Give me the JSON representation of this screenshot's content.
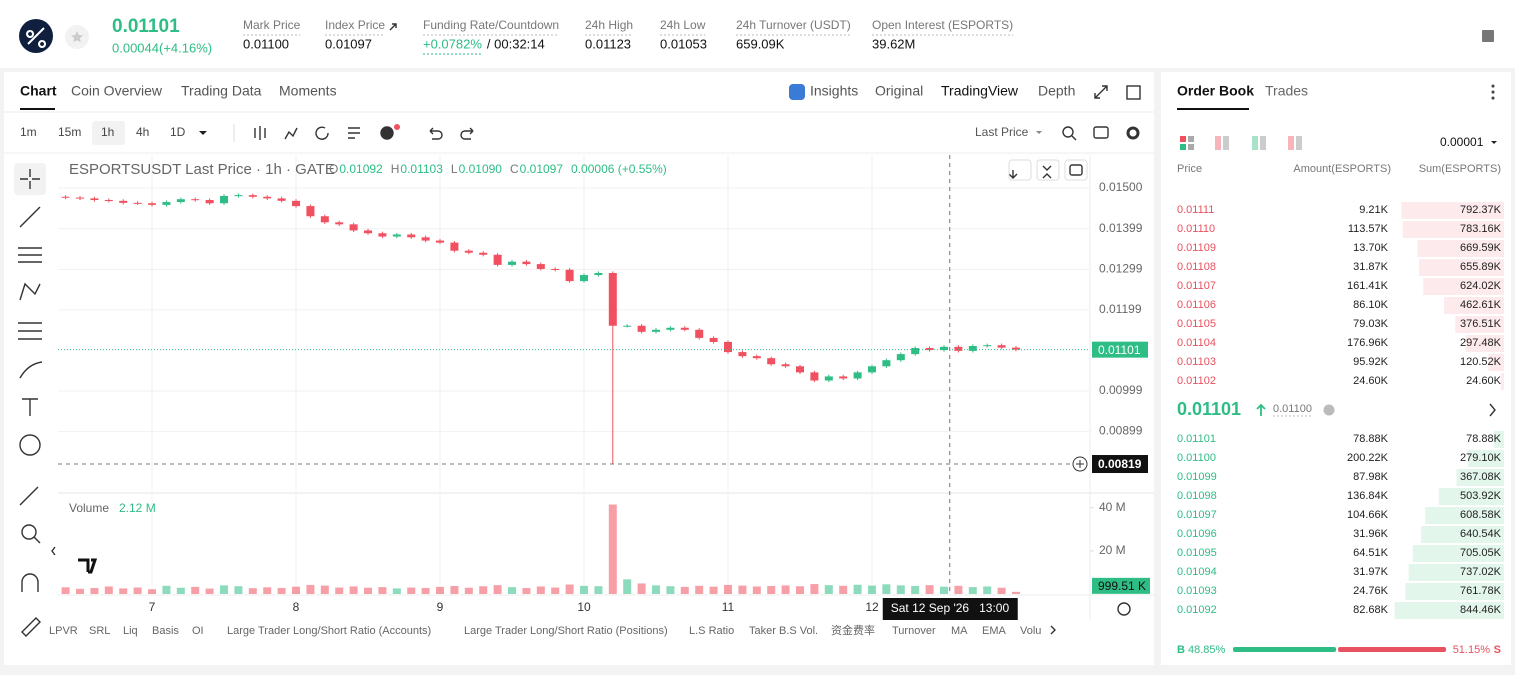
{
  "header": {
    "price": "0.01101",
    "change": "0.00044(+4.16%)",
    "stats": [
      {
        "label": "Mark Price",
        "value": "0.01100"
      },
      {
        "label": "Index Price",
        "value": "0.01097"
      },
      {
        "label": "Funding Rate/Countdown",
        "value": "+0.0782%",
        "countdown": "/ 00:32:14"
      },
      {
        "label": "24h High",
        "value": "0.01123"
      },
      {
        "label": "24h Low",
        "value": "0.01053"
      },
      {
        "label": "24h Turnover (USDT)",
        "value": "659.09K"
      },
      {
        "label": "Open Interest (ESPORTS)",
        "value": "39.62M"
      }
    ]
  },
  "chart_tabs": [
    "Chart",
    "Coin Overview",
    "Trading Data",
    "Moments"
  ],
  "view_tabs": [
    "Insights",
    "Original",
    "TradingView",
    "Depth"
  ],
  "intervals": [
    "1m",
    "15m",
    "1h",
    "4h",
    "1D"
  ],
  "price_source": "Last Price",
  "chart_data": {
    "type": "candlestick",
    "title": "ESPORTSUSDT Last Price · 1h · GATE",
    "legend": [
      {
        "key": "O",
        "value": "0.01092"
      },
      {
        "key": "H",
        "value": "0.01103"
      },
      {
        "key": "L",
        "value": "0.01090"
      },
      {
        "key": "C",
        "value": "0.01097"
      }
    ],
    "legend_change": "0.00006 (+0.55%)",
    "x": [
      6.4,
      6.5,
      6.6,
      6.7,
      6.8,
      6.9,
      7.0,
      7.1,
      7.2,
      7.3,
      7.4,
      7.5,
      7.6,
      7.7,
      7.8,
      7.9,
      8.0,
      8.1,
      8.2,
      8.3,
      8.4,
      8.5,
      8.6,
      8.7,
      8.8,
      8.9,
      9.0,
      9.1,
      9.2,
      9.3,
      9.4,
      9.5,
      9.6,
      9.7,
      9.8,
      9.9,
      10.0,
      10.1,
      10.2,
      10.3,
      10.4,
      10.5,
      10.6,
      10.7,
      10.8,
      10.9,
      11.0,
      11.1,
      11.2,
      11.3,
      11.4,
      11.5,
      11.6,
      11.7,
      11.8,
      11.9,
      12.0,
      12.1,
      12.2,
      12.3,
      12.4,
      12.5,
      12.6,
      12.7,
      12.8,
      12.9,
      13.0
    ],
    "open": [
      0.01478,
      0.01476,
      0.01474,
      0.0147,
      0.01468,
      0.01463,
      0.01462,
      0.01458,
      0.01465,
      0.01472,
      0.0147,
      0.01462,
      0.0148,
      0.01482,
      0.01478,
      0.01474,
      0.01468,
      0.01455,
      0.0143,
      0.01415,
      0.0141,
      0.01395,
      0.01388,
      0.0138,
      0.01385,
      0.01378,
      0.0137,
      0.01365,
      0.01345,
      0.0134,
      0.01335,
      0.0131,
      0.01318,
      0.01312,
      0.013,
      0.01298,
      0.0127,
      0.01285,
      0.0129,
      0.0116,
      0.0116,
      0.01145,
      0.0115,
      0.01155,
      0.0115,
      0.0113,
      0.0112,
      0.01095,
      0.01085,
      0.0108,
      0.01065,
      0.0106,
      0.01045,
      0.01025,
      0.01035,
      0.0103,
      0.01045,
      0.0106,
      0.01075,
      0.0109,
      0.01105,
      0.011,
      0.01108,
      0.01098,
      0.0111,
      0.01112,
      0.01106
    ],
    "high": [
      0.01482,
      0.0148,
      0.01478,
      0.01474,
      0.01472,
      0.01467,
      0.01466,
      0.01469,
      0.01476,
      0.01476,
      0.01474,
      0.01484,
      0.01486,
      0.01486,
      0.01482,
      0.01478,
      0.01472,
      0.01459,
      0.01434,
      0.01419,
      0.01414,
      0.01399,
      0.01392,
      0.01389,
      0.01389,
      0.01382,
      0.01374,
      0.01369,
      0.01349,
      0.01344,
      0.01339,
      0.01322,
      0.01322,
      0.01316,
      0.01304,
      0.01302,
      0.01289,
      0.01294,
      0.01294,
      0.01164,
      0.01164,
      0.01154,
      0.01159,
      0.01159,
      0.01154,
      0.01134,
      0.01124,
      0.01099,
      0.01089,
      0.01084,
      0.01069,
      0.01064,
      0.01049,
      0.01039,
      0.01039,
      0.01049,
      0.01064,
      0.01079,
      0.01094,
      0.01109,
      0.01109,
      0.01112,
      0.01112,
      0.01114,
      0.01116,
      0.01116,
      0.0111
    ],
    "low": [
      0.01472,
      0.0147,
      0.01466,
      0.01464,
      0.01459,
      0.01458,
      0.01454,
      0.01454,
      0.01461,
      0.01466,
      0.01458,
      0.01458,
      0.01476,
      0.01474,
      0.0147,
      0.01464,
      0.01451,
      0.01426,
      0.01411,
      0.01406,
      0.01391,
      0.01384,
      0.01376,
      0.01376,
      0.01374,
      0.01366,
      0.01361,
      0.01341,
      0.01336,
      0.01331,
      0.01306,
      0.01306,
      0.01308,
      0.01296,
      0.01294,
      0.01266,
      0.01266,
      0.01281,
      0.00819,
      0.01156,
      0.01141,
      0.01141,
      0.01146,
      0.01146,
      0.01126,
      0.01116,
      0.01091,
      0.01081,
      0.01076,
      0.01061,
      0.01056,
      0.01041,
      0.01021,
      0.01021,
      0.01026,
      0.01026,
      0.01041,
      0.01056,
      0.01071,
      0.01086,
      0.01096,
      0.01096,
      0.01094,
      0.01094,
      0.01106,
      0.01102,
      0.01097
    ],
    "close": [
      0.01476,
      0.01474,
      0.0147,
      0.01468,
      0.01463,
      0.01462,
      0.01458,
      0.01465,
      0.01472,
      0.0147,
      0.01462,
      0.0148,
      0.01482,
      0.01478,
      0.01474,
      0.01468,
      0.01455,
      0.0143,
      0.01415,
      0.0141,
      0.01395,
      0.01388,
      0.0138,
      0.01385,
      0.01378,
      0.0137,
      0.01365,
      0.01345,
      0.0134,
      0.01335,
      0.0131,
      0.01318,
      0.01312,
      0.013,
      0.01298,
      0.0127,
      0.01285,
      0.0129,
      0.0116,
      0.0116,
      0.01145,
      0.0115,
      0.01155,
      0.0115,
      0.0113,
      0.0112,
      0.01095,
      0.01085,
      0.0108,
      0.01065,
      0.0106,
      0.01045,
      0.01025,
      0.01035,
      0.0103,
      0.01045,
      0.0106,
      0.01075,
      0.0109,
      0.01105,
      0.011,
      0.01108,
      0.01098,
      0.0111,
      0.01112,
      0.01106,
      0.01101
    ],
    "up_color": "#2ebd85",
    "down_color": "#f0505f",
    "xlim": [
      6.347,
      13.514
    ],
    "xticks": [
      7,
      8,
      9,
      10,
      11,
      12
    ],
    "ylim": [
      0.0075,
      0.01581
    ],
    "yticks": [
      {
        "value": 0.015,
        "label": "0.01500"
      },
      {
        "value": 0.01399,
        "label": "0.01399"
      },
      {
        "value": 0.01299,
        "label": "0.01299"
      },
      {
        "value": 0.01199,
        "label": "0.01199"
      },
      {
        "value": 0.00999,
        "label": "0.00999"
      },
      {
        "value": 0.00899,
        "label": "0.00899"
      }
    ],
    "grid": true,
    "last_price": {
      "value": 0.01101,
      "label": "0.01101"
    },
    "crosshair": {
      "x": 12.54,
      "date": "Sat 12 Sep '26",
      "time": "13:00",
      "price": {
        "value": 0.00819,
        "label": "0.00819"
      }
    },
    "volume": {
      "title": "Volume",
      "total": "2.12 M",
      "values": [
        3.1,
        2.4,
        2.8,
        3.5,
        2.6,
        3.0,
        2.2,
        3.8,
        2.9,
        3.3,
        2.5,
        4.0,
        3.6,
        2.7,
        3.1,
        2.8,
        3.4,
        4.2,
        3.9,
        3.0,
        3.5,
        2.9,
        3.2,
        2.6,
        3.0,
        2.8,
        3.3,
        3.7,
        2.9,
        3.6,
        4.1,
        3.2,
        2.8,
        3.5,
        3.0,
        4.4,
        3.8,
        3.6,
        41.5,
        6.8,
        4.9,
        4.0,
        3.6,
        3.3,
        3.8,
        3.4,
        4.2,
        3.9,
        3.5,
        3.7,
        4.0,
        3.6,
        4.6,
        4.1,
        3.8,
        4.3,
        3.9,
        4.5,
        4.0,
        3.7,
        4.1,
        3.4,
        3.8,
        3.2,
        3.5,
        2.9,
        0.99951
      ],
      "last_label": "999.51 K",
      "ylim": [
        0,
        45
      ],
      "yticks": [
        {
          "value": 40,
          "label": "40 M"
        },
        {
          "value": 20,
          "label": "20 M"
        }
      ]
    }
  },
  "indicators": [
    "LPVR",
    "SRL",
    "Liq",
    "Basis",
    "OI",
    "Large Trader Long/Short Ratio (Accounts)",
    "Large Trader Long/Short Ratio (Positions)",
    "L.S Ratio",
    "Taker B.S Vol.",
    "资金费率",
    "Turnover",
    "MA",
    "EMA",
    "Volu"
  ],
  "order_book": {
    "tabs": [
      "Order Book",
      "Trades"
    ],
    "precision": "0.00001",
    "columns": [
      "Price",
      "Amount(ESPORTS)",
      "Sum(ESPORTS)"
    ],
    "asks": [
      {
        "price": "0.01111",
        "amount": "9.21K",
        "sum": {
          "value": 792.37,
          "label": "792.37K"
        }
      },
      {
        "price": "0.01110",
        "amount": "113.57K",
        "sum": {
          "value": 783.16,
          "label": "783.16K"
        }
      },
      {
        "price": "0.01109",
        "amount": "13.70K",
        "sum": {
          "value": 669.59,
          "label": "669.59K"
        }
      },
      {
        "price": "0.01108",
        "amount": "31.87K",
        "sum": {
          "value": 655.89,
          "label": "655.89K"
        }
      },
      {
        "price": "0.01107",
        "amount": "161.41K",
        "sum": {
          "value": 624.02,
          "label": "624.02K"
        }
      },
      {
        "price": "0.01106",
        "amount": "86.10K",
        "sum": {
          "value": 462.61,
          "label": "462.61K"
        }
      },
      {
        "price": "0.01105",
        "amount": "79.03K",
        "sum": {
          "value": 376.51,
          "label": "376.51K"
        }
      },
      {
        "price": "0.01104",
        "amount": "176.96K",
        "sum": {
          "value": 297.48,
          "label": "297.48K"
        }
      },
      {
        "price": "0.01103",
        "amount": "95.92K",
        "sum": {
          "value": 120.52,
          "label": "120.52K"
        }
      },
      {
        "price": "0.01102",
        "amount": "24.60K",
        "sum": {
          "value": 24.6,
          "label": "24.60K"
        }
      }
    ],
    "mid": {
      "price": "0.01101",
      "mark": "0.01100"
    },
    "bids": [
      {
        "price": "0.01101",
        "amount": "78.88K",
        "sum": {
          "value": 78.88,
          "label": "78.88K"
        }
      },
      {
        "price": "0.01100",
        "amount": "200.22K",
        "sum": {
          "value": 279.1,
          "label": "279.10K"
        }
      },
      {
        "price": "0.01099",
        "amount": "87.98K",
        "sum": {
          "value": 367.08,
          "label": "367.08K"
        }
      },
      {
        "price": "0.01098",
        "amount": "136.84K",
        "sum": {
          "value": 503.92,
          "label": "503.92K"
        }
      },
      {
        "price": "0.01097",
        "amount": "104.66K",
        "sum": {
          "value": 608.58,
          "label": "608.58K"
        }
      },
      {
        "price": "0.01096",
        "amount": "31.96K",
        "sum": {
          "value": 640.54,
          "label": "640.54K"
        }
      },
      {
        "price": "0.01095",
        "amount": "64.51K",
        "sum": {
          "value": 705.05,
          "label": "705.05K"
        }
      },
      {
        "price": "0.01094",
        "amount": "31.97K",
        "sum": {
          "value": 737.02,
          "label": "737.02K"
        }
      },
      {
        "price": "0.01093",
        "amount": "24.76K",
        "sum": {
          "value": 761.78,
          "label": "761.78K"
        }
      },
      {
        "price": "0.01092",
        "amount": "82.68K",
        "sum": {
          "value": 844.46,
          "label": "844.46K"
        }
      }
    ],
    "ratio": {
      "buy_key": "B",
      "buy": {
        "value": 48.85,
        "label": "48.85%"
      },
      "sell": {
        "value": 51.15,
        "label": "51.15%"
      },
      "sell_key": "S"
    }
  }
}
